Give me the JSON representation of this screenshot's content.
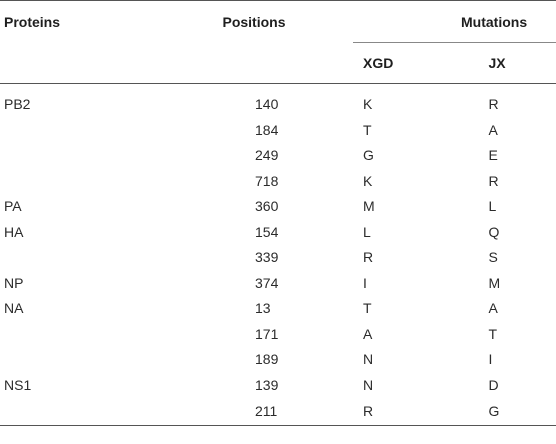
{
  "headers": {
    "proteins": "Proteins",
    "positions": "Positions",
    "mutations": "Mutations",
    "xgd": "XGD",
    "jx": "JX"
  },
  "rows": [
    {
      "protein": "PB2",
      "position": "140",
      "xgd": "K",
      "jx": "R"
    },
    {
      "protein": "",
      "position": "184",
      "xgd": "T",
      "jx": "A"
    },
    {
      "protein": "",
      "position": "249",
      "xgd": "G",
      "jx": "E"
    },
    {
      "protein": "",
      "position": "718",
      "xgd": "K",
      "jx": "R"
    },
    {
      "protein": "PA",
      "position": "360",
      "xgd": "M",
      "jx": "L"
    },
    {
      "protein": "HA",
      "position": "154",
      "xgd": "L",
      "jx": "Q"
    },
    {
      "protein": "",
      "position": "339",
      "xgd": "R",
      "jx": "S"
    },
    {
      "protein": "NP",
      "position": "374",
      "xgd": "I",
      "jx": "M"
    },
    {
      "protein": "NA",
      "position": "13",
      "xgd": "T",
      "jx": "A"
    },
    {
      "protein": "",
      "position": "171",
      "xgd": "A",
      "jx": "T"
    },
    {
      "protein": "",
      "position": "189",
      "xgd": "N",
      "jx": "I"
    },
    {
      "protein": "NS1",
      "position": "139",
      "xgd": "N",
      "jx": "D"
    },
    {
      "protein": "",
      "position": "211",
      "xgd": "R",
      "jx": "G"
    }
  ]
}
